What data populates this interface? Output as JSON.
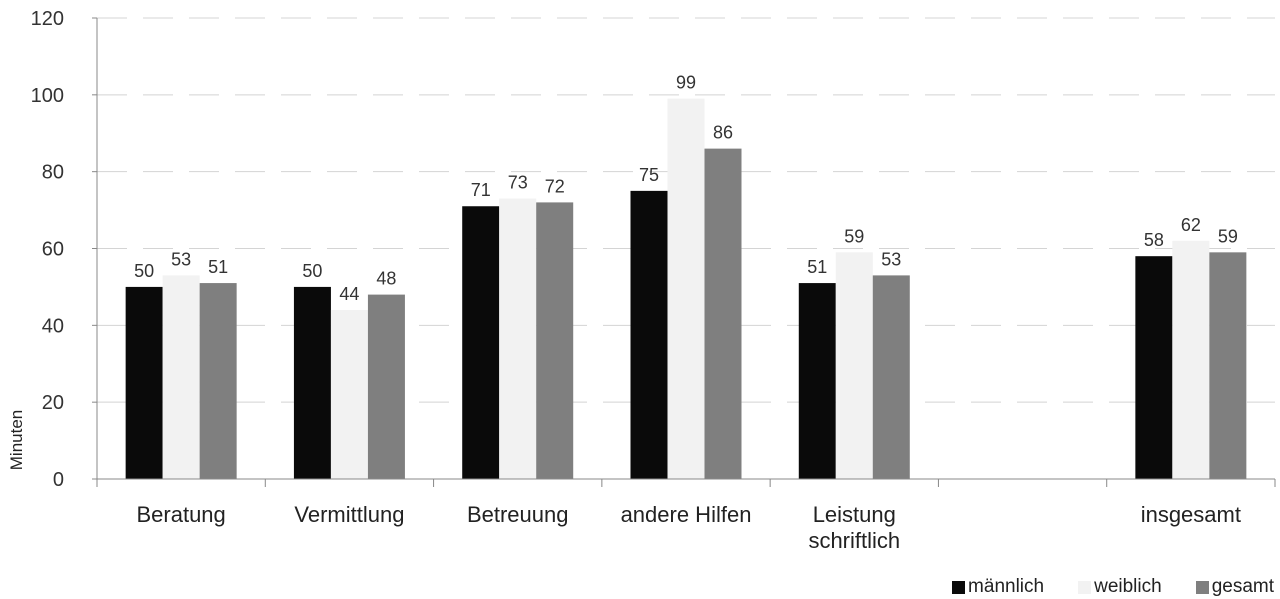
{
  "chart_data": {
    "type": "bar",
    "categories": [
      "Beratung",
      "Vermittlung",
      "Betreuung",
      "andere Hilfen",
      "Leistung schriftlich",
      "",
      "insgesamt"
    ],
    "series": [
      {
        "name": "männlich",
        "color": "#0a0a0a",
        "values": [
          50,
          50,
          71,
          75,
          51,
          null,
          58
        ]
      },
      {
        "name": "weiblich",
        "color": "#f2f2f2",
        "values": [
          53,
          44,
          73,
          99,
          59,
          null,
          62
        ]
      },
      {
        "name": "gesamt",
        "color": "#7f7f7f",
        "values": [
          51,
          48,
          72,
          86,
          53,
          null,
          59
        ]
      }
    ],
    "ylabel": "Minuten",
    "xlabel": "",
    "title": "",
    "ylim": [
      0,
      120
    ],
    "yticks": [
      0,
      20,
      40,
      60,
      80,
      100,
      120
    ],
    "grid": "horizontal dashed",
    "legend_position": "bottom-right"
  }
}
